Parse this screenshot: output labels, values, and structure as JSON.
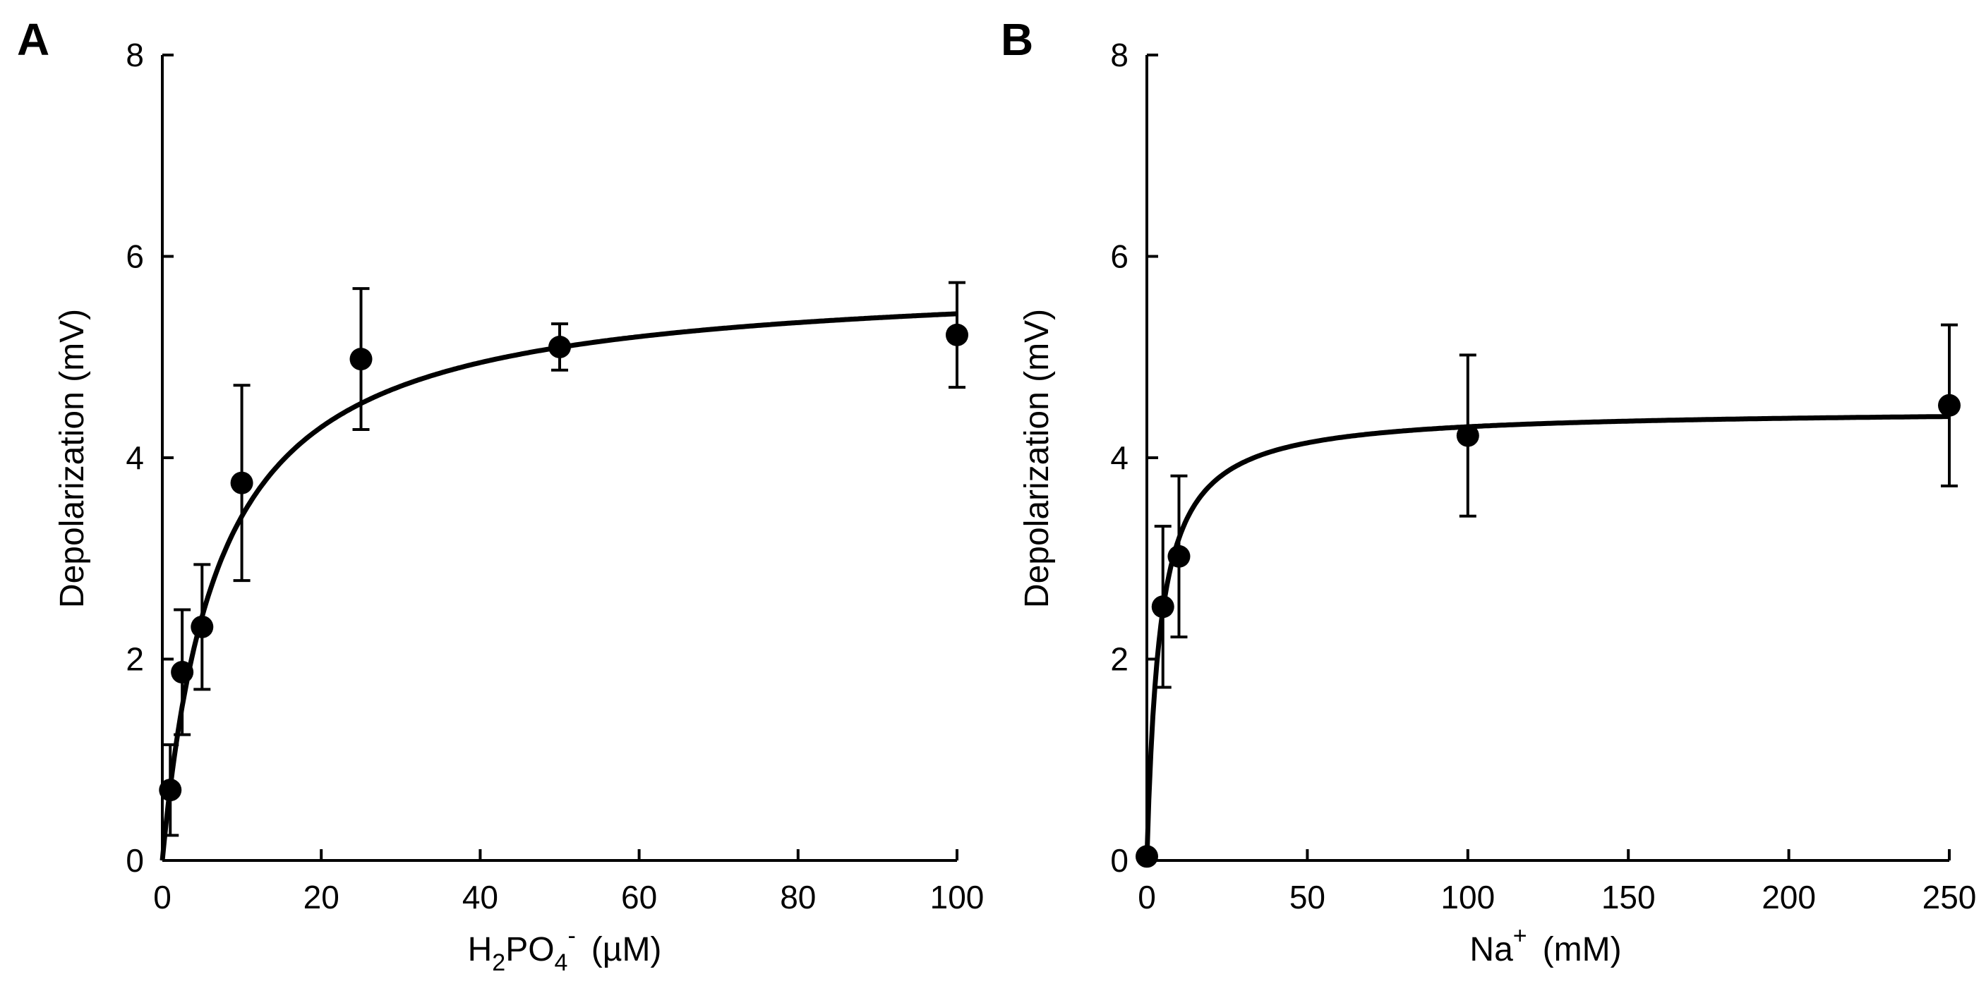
{
  "chart_data": [
    {
      "panel": "A",
      "type": "scatter",
      "series_style": "markers with error bars and saturating fitted curve",
      "xlabel": {
        "main": "H",
        "sub1": "2",
        "mid": "PO",
        "sub2": "4",
        "sup": "-",
        "unit": "(µM)"
      },
      "ylabel": "Depolarization (mV)",
      "xlim": [
        0,
        100
      ],
      "ylim": [
        0,
        8
      ],
      "xticks": [
        0,
        20,
        40,
        60,
        80,
        100
      ],
      "yticks": [
        0,
        2,
        4,
        6,
        8
      ],
      "x": [
        1,
        2.5,
        5,
        10,
        25,
        50,
        100
      ],
      "y": [
        0.7,
        1.87,
        2.32,
        3.75,
        4.98,
        5.1,
        5.22
      ],
      "error": [
        0.45,
        0.62,
        0.62,
        0.97,
        0.7,
        0.23,
        0.52
      ],
      "fit": {
        "model": "michaelis-menten",
        "vmax": 5.81,
        "k": 7.0,
        "x_range": [
          0,
          100
        ]
      },
      "grid": false
    },
    {
      "panel": "B",
      "type": "scatter",
      "series_style": "markers with error bars and saturating fitted curve",
      "xlabel": {
        "main": "Na",
        "sup": "+",
        "unit": "(mM)"
      },
      "ylabel": "Depolarization (mV)",
      "xlim": [
        0,
        250
      ],
      "ylim": [
        0,
        8
      ],
      "xticks": [
        0,
        50,
        100,
        150,
        200,
        250
      ],
      "yticks": [
        0,
        2,
        4,
        6,
        8
      ],
      "x": [
        0,
        5,
        10,
        100,
        250
      ],
      "y": [
        0.04,
        2.52,
        3.02,
        4.22,
        4.52
      ],
      "error": [
        0,
        0.8,
        0.8,
        0.8,
        0.8
      ],
      "fit": {
        "model": "michaelis-menten",
        "vmax": 4.48,
        "k": 4.0,
        "x_range": [
          0,
          250
        ]
      },
      "grid": false
    }
  ]
}
